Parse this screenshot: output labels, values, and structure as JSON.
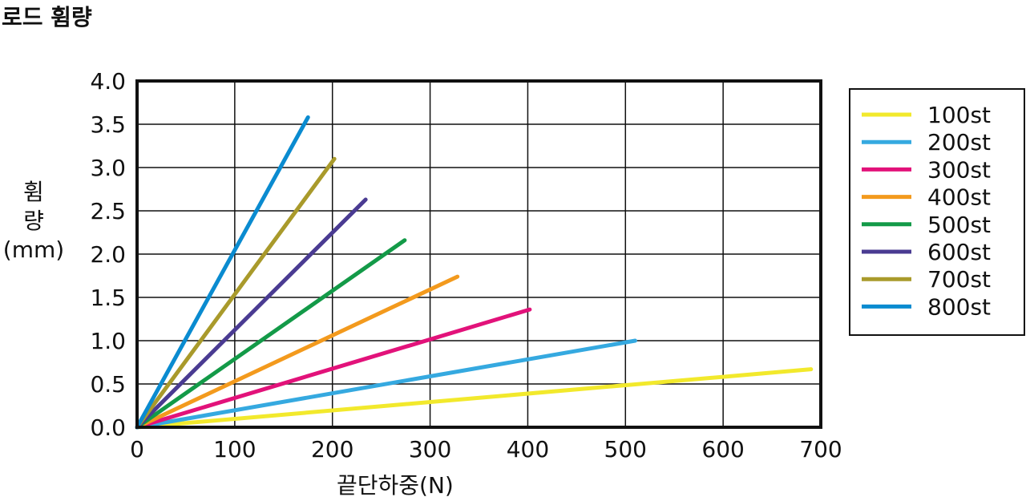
{
  "header": {
    "title": "로드 휨량"
  },
  "chart_data": {
    "type": "line",
    "title": "로드 휨량",
    "ylabel_line1": "휨",
    "ylabel_line2": "량",
    "ylabel_line3": "(mm)",
    "xlabel": "끝단하중(N)",
    "xlim": [
      0,
      700
    ],
    "ylim": [
      0,
      4.0
    ],
    "xticks": [
      "0",
      "100",
      "200",
      "300",
      "400",
      "500",
      "600",
      "700"
    ],
    "yticks": [
      "0.0",
      "0.5",
      "1.0",
      "1.5",
      "2.0",
      "2.5",
      "3.0",
      "3.5",
      "4.0"
    ],
    "grid": true,
    "legend_position": "right",
    "series": [
      {
        "name": "100st",
        "color": "#f2e92c",
        "x": [
          0,
          690
        ],
        "y": [
          0,
          0.67
        ]
      },
      {
        "name": "200st",
        "color": "#35a9e0",
        "x": [
          0,
          510
        ],
        "y": [
          0,
          1.0
        ]
      },
      {
        "name": "300st",
        "color": "#e2127a",
        "x": [
          0,
          402
        ],
        "y": [
          0,
          1.36
        ]
      },
      {
        "name": "400st",
        "color": "#f39a1d",
        "x": [
          0,
          328
        ],
        "y": [
          0,
          1.74
        ]
      },
      {
        "name": "500st",
        "color": "#139a48",
        "x": [
          0,
          274
        ],
        "y": [
          0,
          2.16
        ]
      },
      {
        "name": "600st",
        "color": "#4a3b92",
        "x": [
          0,
          234
        ],
        "y": [
          0,
          2.63
        ]
      },
      {
        "name": "700st",
        "color": "#a99a2b",
        "x": [
          0,
          202
        ],
        "y": [
          0,
          3.1
        ]
      },
      {
        "name": "800st",
        "color": "#0a8bd0",
        "x": [
          0,
          175
        ],
        "y": [
          0,
          3.58
        ]
      }
    ]
  }
}
